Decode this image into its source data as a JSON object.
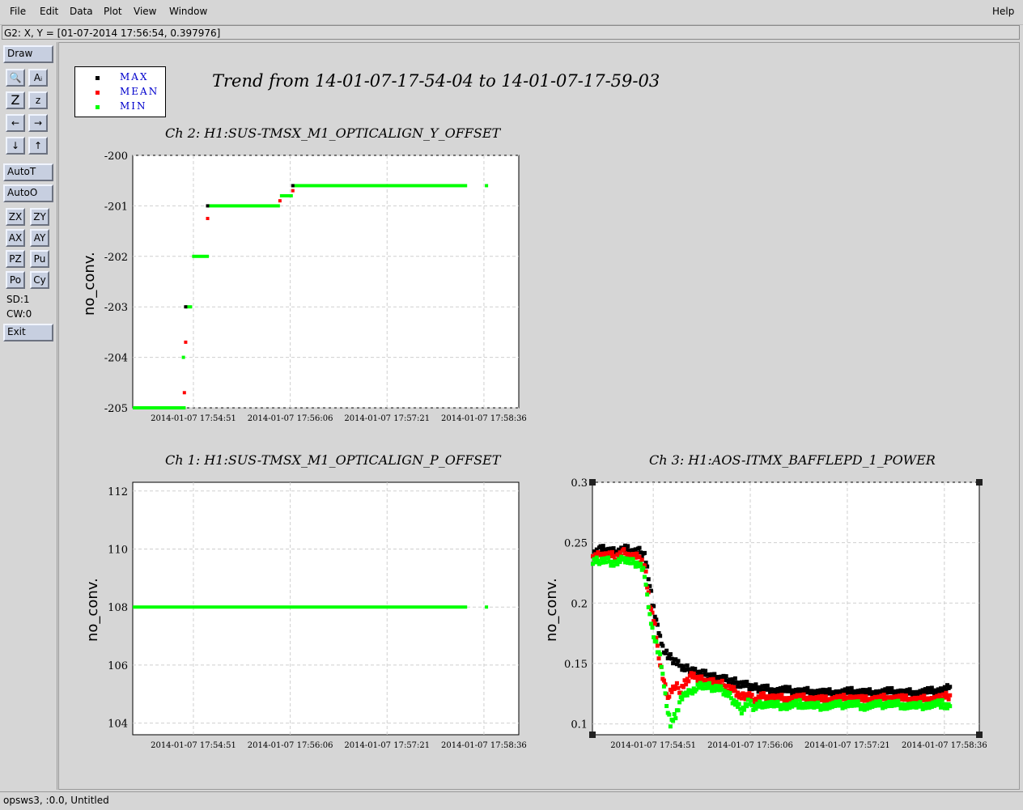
{
  "menu": {
    "items": [
      "File",
      "Edit",
      "Data",
      "Plot",
      "View",
      "Window"
    ],
    "help": "Help"
  },
  "status_line": "G2: X, Y = [01-07-2014 17:56:54, 0.397976]",
  "sidebar": {
    "draw": "Draw",
    "icons": [
      "magnify-icon",
      "text-icon",
      "zoom-large-icon",
      "zoom-small-icon",
      "arrow-left-icon",
      "arrow-right-icon",
      "arrow-down-icon",
      "arrow-up-icon"
    ],
    "icon_glyphs": [
      "🔍",
      "Aᵢ",
      "Z",
      "z",
      "←",
      "→",
      "↓",
      "↑"
    ],
    "autot": "AutoT",
    "autoo": "AutoO",
    "grid_buttons": [
      "ZX",
      "ZY",
      "AX",
      "AY",
      "PZ",
      "Pu",
      "Po",
      "Cy"
    ],
    "sd": "SD:1",
    "cw": "CW:0",
    "exit": "Exit"
  },
  "legend": {
    "entries": [
      {
        "label": "MAX",
        "color": "#000000"
      },
      {
        "label": "MEAN",
        "color": "#ff0000"
      },
      {
        "label": "MIN",
        "color": "#00ff00"
      }
    ]
  },
  "main_title": "Trend from 14-01-07-17-54-04 to 14-01-07-17-59-03",
  "footer": "opsws3, :0.0, Untitled",
  "chart_data": [
    {
      "type": "scatter",
      "title": "Ch 2: H1:SUS-TMSX_M1_OPTICALIGN_Y_OFFSET",
      "ylabel": "no_conv.",
      "xlim": [
        0,
        299
      ],
      "ylim": [
        -205,
        -200
      ],
      "yticks": [
        -200,
        -201,
        -202,
        -203,
        -204,
        -205
      ],
      "xticks": [
        {
          "t": 47,
          "label": "2014-01-07 17:54:51"
        },
        {
          "t": 122,
          "label": "2014-01-07 17:56:06"
        },
        {
          "t": 197,
          "label": "2014-01-07 17:57:21"
        },
        {
          "t": 272,
          "label": "2014-01-07 17:58:36"
        }
      ],
      "segments": [
        {
          "x0": 0,
          "x1": 41,
          "y": -205
        },
        {
          "x0": 38,
          "x1": 40,
          "y": -204
        },
        {
          "x0": 41,
          "x1": 46,
          "y": -203
        },
        {
          "x0": 46,
          "x1": 59,
          "y": -202
        },
        {
          "x0": 58,
          "x1": 114,
          "y": -201
        },
        {
          "x0": 114,
          "x1": 124,
          "y": -200.8
        },
        {
          "x0": 124,
          "x1": 259,
          "y": -200.6
        }
      ],
      "points": [
        {
          "x": 274,
          "y": -200.6,
          "s": "min"
        },
        {
          "x": 40,
          "y": -204.7,
          "s": "mean"
        },
        {
          "x": 41,
          "y": -203.7,
          "s": "mean"
        },
        {
          "x": 58,
          "y": -201.25,
          "s": "mean"
        },
        {
          "x": 124,
          "y": -200.7,
          "s": "mean"
        },
        {
          "x": 114,
          "y": -200.9,
          "s": "mean"
        },
        {
          "x": 41,
          "y": -203,
          "s": "max"
        },
        {
          "x": 58,
          "y": -201,
          "s": "max"
        },
        {
          "x": 124,
          "y": -200.6,
          "s": "max"
        }
      ]
    },
    {
      "type": "scatter",
      "title": "Ch 1: H1:SUS-TMSX_M1_OPTICALIGN_P_OFFSET",
      "ylabel": "no_conv.",
      "xlim": [
        0,
        299
      ],
      "ylim": [
        103.6,
        112.3
      ],
      "yticks": [
        112,
        110,
        108,
        106,
        104
      ],
      "xticks": [
        {
          "t": 47,
          "label": "2014-01-07 17:54:51"
        },
        {
          "t": 122,
          "label": "2014-01-07 17:56:06"
        },
        {
          "t": 197,
          "label": "2014-01-07 17:57:21"
        },
        {
          "t": 272,
          "label": "2014-01-07 17:58:36"
        }
      ],
      "segments": [
        {
          "x0": 0,
          "x1": 259,
          "y": 108
        }
      ],
      "points": [
        {
          "x": 274,
          "y": 108,
          "s": "min"
        }
      ]
    },
    {
      "type": "scatter",
      "title": "Ch 3: H1:AOS-ITMX_BAFFLEPD_1_POWER",
      "ylabel": "no_conv.",
      "xlim": [
        0,
        299
      ],
      "ylim": [
        0.091,
        0.3
      ],
      "yticks": [
        0.3,
        0.25,
        0.2,
        0.15,
        0.1
      ],
      "xticks": [
        {
          "t": 47,
          "label": "2014-01-07 17:54:51"
        },
        {
          "t": 122,
          "label": "2014-01-07 17:56:06"
        },
        {
          "t": 197,
          "label": "2014-01-07 17:57:21"
        },
        {
          "t": 272,
          "label": "2014-01-07 17:58:36"
        }
      ],
      "series": [
        {
          "key": "max",
          "color": "#000000",
          "x": [
            0,
            6,
            12,
            18,
            24,
            30,
            36,
            40,
            42,
            44,
            46,
            48,
            50,
            52,
            54,
            56,
            58,
            60,
            64,
            68,
            72,
            76,
            80,
            85,
            90,
            95,
            100,
            105,
            110,
            115,
            120,
            125,
            130,
            140,
            150,
            160,
            170,
            180,
            190,
            200,
            210,
            220,
            230,
            240,
            250,
            260,
            270,
            276
          ],
          "y": [
            0.242,
            0.245,
            0.244,
            0.243,
            0.246,
            0.243,
            0.243,
            0.24,
            0.23,
            0.215,
            0.2,
            0.192,
            0.18,
            0.172,
            0.165,
            0.16,
            0.157,
            0.155,
            0.152,
            0.148,
            0.146,
            0.145,
            0.143,
            0.142,
            0.14,
            0.139,
            0.138,
            0.136,
            0.135,
            0.133,
            0.132,
            0.13,
            0.13,
            0.128,
            0.128,
            0.127,
            0.127,
            0.126,
            0.126,
            0.127,
            0.126,
            0.126,
            0.127,
            0.126,
            0.126,
            0.127,
            0.128,
            0.131
          ]
        },
        {
          "key": "mean",
          "color": "#ff0000",
          "x": [
            0,
            6,
            12,
            18,
            24,
            30,
            36,
            40,
            42,
            44,
            46,
            48,
            50,
            52,
            54,
            56,
            58,
            60,
            64,
            68,
            72,
            76,
            80,
            85,
            90,
            95,
            100,
            105,
            110,
            115,
            120,
            125,
            130,
            140,
            150,
            160,
            170,
            180,
            190,
            200,
            210,
            220,
            230,
            240,
            250,
            260,
            270,
            276
          ],
          "y": [
            0.238,
            0.241,
            0.24,
            0.239,
            0.242,
            0.239,
            0.238,
            0.232,
            0.215,
            0.2,
            0.19,
            0.182,
            0.165,
            0.15,
            0.14,
            0.13,
            0.12,
            0.128,
            0.132,
            0.128,
            0.136,
            0.14,
            0.138,
            0.137,
            0.135,
            0.134,
            0.133,
            0.13,
            0.127,
            0.122,
            0.125,
            0.12,
            0.123,
            0.122,
            0.121,
            0.122,
            0.121,
            0.12,
            0.121,
            0.122,
            0.12,
            0.121,
            0.122,
            0.121,
            0.12,
            0.121,
            0.122,
            0.124
          ]
        },
        {
          "key": "min",
          "color": "#00ff00",
          "x": [
            0,
            6,
            12,
            18,
            24,
            30,
            36,
            40,
            42,
            44,
            46,
            48,
            50,
            52,
            54,
            56,
            58,
            60,
            64,
            68,
            72,
            76,
            80,
            85,
            90,
            95,
            100,
            105,
            110,
            115,
            120,
            125,
            130,
            140,
            150,
            160,
            170,
            180,
            190,
            200,
            210,
            220,
            230,
            240,
            250,
            260,
            270,
            276
          ],
          "y": [
            0.234,
            0.236,
            0.235,
            0.233,
            0.237,
            0.234,
            0.233,
            0.225,
            0.205,
            0.19,
            0.18,
            0.17,
            0.162,
            0.155,
            0.14,
            0.125,
            0.11,
            0.1,
            0.108,
            0.12,
            0.125,
            0.128,
            0.13,
            0.132,
            0.131,
            0.13,
            0.128,
            0.124,
            0.118,
            0.112,
            0.118,
            0.114,
            0.117,
            0.116,
            0.115,
            0.117,
            0.115,
            0.115,
            0.116,
            0.117,
            0.115,
            0.116,
            0.117,
            0.116,
            0.115,
            0.116,
            0.117,
            0.115
          ]
        }
      ]
    }
  ]
}
